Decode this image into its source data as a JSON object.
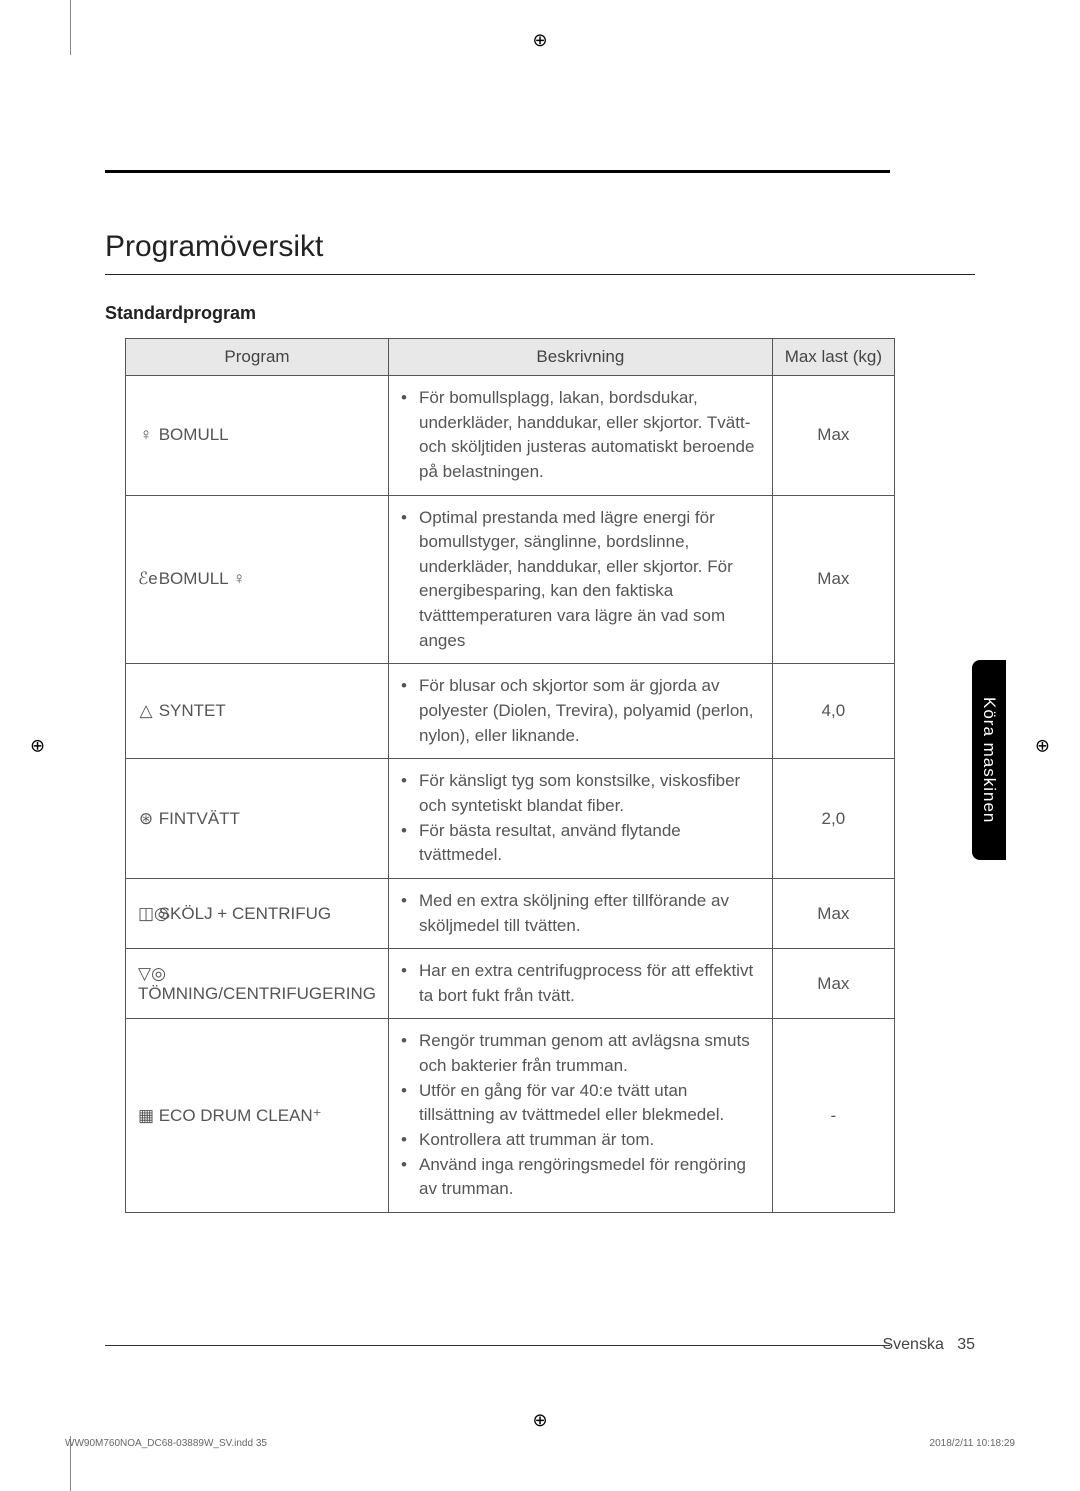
{
  "marks": {
    "top": "⊕",
    "left": "⊕",
    "right": "⊕",
    "bottom": "⊕"
  },
  "section_title": "Programöversikt",
  "subtitle": "Standardprogram",
  "table": {
    "headers": [
      "Program",
      "Beskrivning",
      "Max last (kg)"
    ],
    "rows": [
      {
        "icon": "♀",
        "program": " BOMULL",
        "desc": [
          "För bomullsplagg, lakan, bordsdukar, underkläder, handdukar, eller skjortor. Tvätt- och sköljtiden justeras automatiskt beroende på belastningen."
        ],
        "max": "Max"
      },
      {
        "icon": "ℰe",
        "program": " BOMULL ♀",
        "desc": [
          "Optimal prestanda med lägre energi för bomullstyger, sänglinne, bordslinne, underkläder, handdukar, eller skjortor. För energibesparing, kan den faktiska tvätttemperaturen vara lägre än vad som anges"
        ],
        "max": "Max"
      },
      {
        "icon": "△",
        "program": " SYNTET",
        "desc": [
          "För blusar och skjortor som är gjorda av polyester (Diolen, Trevira), polyamid (perlon, nylon), eller liknande."
        ],
        "max": "4,0"
      },
      {
        "icon": "⊛",
        "program": " FINTVÄTT",
        "desc": [
          "För känsligt tyg som konstsilke, viskosfiber och syntetiskt blandat fiber.",
          "För bästa resultat, använd flytande tvättmedel."
        ],
        "max": "2,0"
      },
      {
        "icon": "◫◎",
        "program": " SKÖLJ + CENTRIFUG",
        "desc": [
          "Med en extra sköljning efter tillförande av sköljmedel till tvätten."
        ],
        "max": "Max"
      },
      {
        "icon": "▽◎",
        "program": " TÖMNING/CENTRIFUGERING",
        "desc": [
          "Har en extra centrifugprocess för att effektivt ta bort fukt från tvätt."
        ],
        "max": "Max"
      },
      {
        "icon": "▦",
        "program": " ECO DRUM CLEAN⁺",
        "desc": [
          "Rengör trumman genom att avlägsna smuts och bakterier från trumman.",
          "Utför en gång för var 40:e tvätt utan tillsättning av tvättmedel eller blekmedel.",
          "Kontrollera att trumman är tom.",
          "Använd inga rengöringsmedel för rengöring av trumman."
        ],
        "max": "-"
      }
    ]
  },
  "side_tab": "Köra maskinen",
  "footer": {
    "lang": "Svenska",
    "page": "35"
  },
  "print_footer": {
    "left": "WW90M760NOA_DC68-03889W_SV.indd   35",
    "right": "2018/2/11   10:18:29"
  }
}
